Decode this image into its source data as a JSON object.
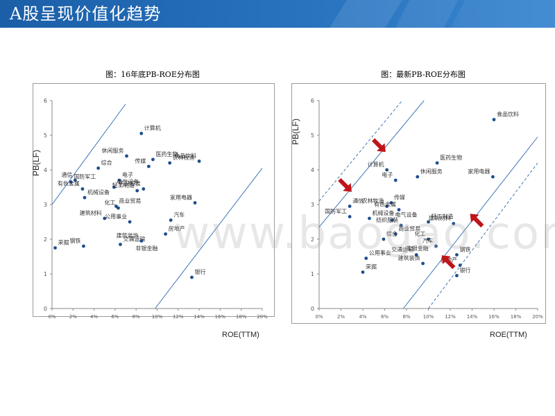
{
  "page": {
    "title": "A股呈现价值化趋势",
    "watermark": "www.baogao.com",
    "colors": {
      "header": "#1b5fa8",
      "dot": "#1f4e8c",
      "line": "#3f74b5",
      "dashed": "#3f74b5",
      "arrow": "#c0141b"
    }
  },
  "chart_data": [
    {
      "type": "scatter",
      "title": "图：16年底PB-ROE分布图",
      "xlabel": "ROE(TTM)",
      "ylabel": "PB(LF)",
      "xlim": [
        0,
        20
      ],
      "ylim": [
        0,
        6
      ],
      "x_ticks": [
        "0%",
        "2%",
        "4%",
        "6%",
        "8%",
        "10%",
        "12%",
        "14%",
        "16%",
        "18%",
        "20%"
      ],
      "y_ticks": [
        "0",
        "1",
        "2",
        "3",
        "4",
        "5",
        "6"
      ],
      "points": [
        {
          "label": "计算机",
          "x": 8.5,
          "y": 5.05
        },
        {
          "label": "休闲服务",
          "x": 7.1,
          "y": 4.4
        },
        {
          "label": "医药生物",
          "x": 9.6,
          "y": 4.3
        },
        {
          "label": "食品饮料",
          "x": 14.0,
          "y": 4.25
        },
        {
          "label": "综合",
          "x": 4.4,
          "y": 4.05
        },
        {
          "label": "传媒",
          "x": 9.2,
          "y": 4.1
        },
        {
          "label": "国防军工",
          "x": 1.8,
          "y": 3.65
        },
        {
          "label": "通信",
          "x": 2.2,
          "y": 3.7
        },
        {
          "label": "电子",
          "x": 6.4,
          "y": 3.7
        },
        {
          "label": "有色金属",
          "x": 2.9,
          "y": 3.45
        },
        {
          "label": "电气设备",
          "x": 5.9,
          "y": 3.5
        },
        {
          "label": "轻工制造",
          "x": 8.1,
          "y": 3.4
        },
        {
          "label": "农林牧渔",
          "x": 11.2,
          "y": 4.2
        },
        {
          "label": "纺织服装",
          "x": 8.7,
          "y": 3.45
        },
        {
          "label": "机械设备",
          "x": 3.1,
          "y": 3.2
        },
        {
          "label": "家用电器",
          "x": 13.6,
          "y": 3.05
        },
        {
          "label": "商业贸易",
          "x": 6.1,
          "y": 2.95
        },
        {
          "label": "化工",
          "x": 6.3,
          "y": 2.9
        },
        {
          "label": "汽车",
          "x": 11.3,
          "y": 2.55
        },
        {
          "label": "公用事业",
          "x": 7.4,
          "y": 2.5
        },
        {
          "label": "采掘",
          "x": 0.3,
          "y": 1.75
        },
        {
          "label": "建筑材料",
          "x": 5.0,
          "y": 2.6
        },
        {
          "label": "房地产",
          "x": 10.8,
          "y": 2.15
        },
        {
          "label": "钢铁",
          "x": 3.0,
          "y": 1.8
        },
        {
          "label": "交通运输",
          "x": 6.5,
          "y": 1.85
        },
        {
          "label": "建筑装饰",
          "x": 8.5,
          "y": 1.95
        },
        {
          "label": "银行",
          "x": 13.3,
          "y": 0.9
        }
      ],
      "label_only": [
        "非银金融"
      ],
      "lines": [
        {
          "style": "solid",
          "from": [
            0,
            3.0
          ],
          "to": [
            7.0,
            5.9
          ]
        },
        {
          "style": "solid",
          "from": [
            9.8,
            0
          ],
          "to": [
            20,
            4.05
          ]
        }
      ]
    },
    {
      "type": "scatter",
      "title": "图：最新PB-ROE分布图",
      "xlabel": "ROE(TTM)",
      "ylabel": "PB(LF)",
      "xlim": [
        0,
        20
      ],
      "ylim": [
        0,
        6
      ],
      "x_ticks": [
        "0%",
        "2%",
        "4%",
        "6%",
        "8%",
        "10%",
        "12%",
        "14%",
        "16%",
        "18%",
        "20%"
      ],
      "y_ticks": [
        "0",
        "1",
        "2",
        "3",
        "4",
        "5",
        "6"
      ],
      "points": [
        {
          "label": "食品饮料",
          "x": 16.0,
          "y": 5.45
        },
        {
          "label": "计算机",
          "x": 6.2,
          "y": 4.0
        },
        {
          "label": "医药生物",
          "x": 10.8,
          "y": 4.2
        },
        {
          "label": "电子",
          "x": 7.0,
          "y": 3.7
        },
        {
          "label": "休闲服务",
          "x": 9.0,
          "y": 3.8
        },
        {
          "label": "家用电器",
          "x": 15.9,
          "y": 3.8
        },
        {
          "label": "通信",
          "x": 2.8,
          "y": 2.95
        },
        {
          "label": "农林牧渔",
          "x": 6.2,
          "y": 2.95
        },
        {
          "label": "传媒",
          "x": 6.6,
          "y": 3.05
        },
        {
          "label": "有色金属",
          "x": 7.3,
          "y": 2.85
        },
        {
          "label": "机械设备",
          "x": 4.6,
          "y": 2.6
        },
        {
          "label": "国防军工",
          "x": 2.8,
          "y": 2.65
        },
        {
          "label": "电气设备",
          "x": 6.7,
          "y": 2.55
        },
        {
          "label": "纺织服装",
          "x": 7.5,
          "y": 2.4
        },
        {
          "label": "轻工制造",
          "x": 10.0,
          "y": 2.5
        },
        {
          "label": "建筑材料",
          "x": 12.3,
          "y": 2.45
        },
        {
          "label": "商业贸易",
          "x": 7.0,
          "y": 2.15
        },
        {
          "label": "化工",
          "x": 10.0,
          "y": 2.0
        },
        {
          "label": "综合",
          "x": 5.9,
          "y": 2.0
        },
        {
          "label": "汽车",
          "x": 10.7,
          "y": 1.8
        },
        {
          "label": "公用事业",
          "x": 4.3,
          "y": 1.45
        },
        {
          "label": "交通运输",
          "x": 8.9,
          "y": 1.55
        },
        {
          "label": "采掘",
          "x": 4.0,
          "y": 1.05
        },
        {
          "label": "建筑装饰",
          "x": 9.5,
          "y": 1.3
        },
        {
          "label": "钢铁",
          "x": 12.6,
          "y": 1.55
        },
        {
          "label": "房地产",
          "x": 12.9,
          "y": 1.25
        },
        {
          "label": "银行",
          "x": 12.6,
          "y": 0.95
        }
      ],
      "label_only": [
        "非银金融"
      ],
      "lines": [
        {
          "style": "dashed",
          "from": [
            0,
            3.1
          ],
          "to": [
            7.6,
            6.0
          ]
        },
        {
          "style": "solid",
          "from": [
            0,
            2.35
          ],
          "to": [
            9.6,
            6.0
          ]
        },
        {
          "style": "solid",
          "from": [
            7.7,
            0
          ],
          "to": [
            20,
            4.95
          ]
        },
        {
          "style": "dashed",
          "from": [
            10.0,
            0
          ],
          "to": [
            20,
            4.2
          ]
        }
      ],
      "arrows": [
        {
          "direction": "down-right",
          "at": [
            5.5,
            4.7
          ]
        },
        {
          "direction": "down-right",
          "at": [
            2.4,
            3.55
          ]
        },
        {
          "direction": "up-left",
          "at": [
            14.4,
            2.55
          ]
        },
        {
          "direction": "up-left",
          "at": [
            11.8,
            1.35
          ]
        }
      ]
    }
  ]
}
